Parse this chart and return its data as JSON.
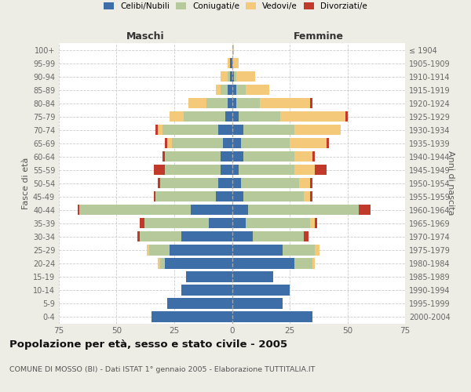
{
  "age_groups": [
    "0-4",
    "5-9",
    "10-14",
    "15-19",
    "20-24",
    "25-29",
    "30-34",
    "35-39",
    "40-44",
    "45-49",
    "50-54",
    "55-59",
    "60-64",
    "65-69",
    "70-74",
    "75-79",
    "80-84",
    "85-89",
    "90-94",
    "95-99",
    "100+"
  ],
  "birth_years": [
    "2000-2004",
    "1995-1999",
    "1990-1994",
    "1985-1989",
    "1980-1984",
    "1975-1979",
    "1970-1974",
    "1965-1969",
    "1960-1964",
    "1955-1959",
    "1950-1954",
    "1945-1949",
    "1940-1944",
    "1935-1939",
    "1930-1934",
    "1925-1929",
    "1920-1924",
    "1915-1919",
    "1910-1914",
    "1905-1909",
    "≤ 1904"
  ],
  "colors": {
    "celibi": "#3d6ea8",
    "coniugati": "#b5c99a",
    "vedovi": "#f5c97a",
    "divorziati": "#c0392b"
  },
  "maschi": {
    "celibi": [
      35,
      28,
      22,
      20,
      29,
      27,
      22,
      10,
      18,
      7,
      6,
      5,
      5,
      4,
      6,
      3,
      2,
      2,
      1,
      1,
      0
    ],
    "coniugati": [
      0,
      0,
      0,
      0,
      2,
      9,
      18,
      28,
      48,
      26,
      25,
      24,
      24,
      22,
      24,
      18,
      9,
      3,
      1,
      0,
      0
    ],
    "vedovi": [
      0,
      0,
      0,
      0,
      1,
      1,
      0,
      0,
      0,
      0,
      0,
      0,
      0,
      2,
      2,
      6,
      8,
      2,
      3,
      1,
      0
    ],
    "divorziati": [
      0,
      0,
      0,
      0,
      0,
      0,
      1,
      2,
      1,
      1,
      1,
      5,
      1,
      1,
      1,
      0,
      0,
      0,
      0,
      0,
      0
    ]
  },
  "femmine": {
    "celibi": [
      35,
      22,
      25,
      18,
      27,
      22,
      9,
      6,
      7,
      5,
      4,
      3,
      5,
      4,
      5,
      3,
      2,
      2,
      1,
      0,
      0
    ],
    "coniugati": [
      0,
      0,
      0,
      0,
      8,
      14,
      22,
      28,
      48,
      26,
      25,
      24,
      22,
      21,
      22,
      18,
      10,
      4,
      1,
      0,
      0
    ],
    "vedovi": [
      0,
      0,
      0,
      0,
      1,
      2,
      0,
      2,
      0,
      3,
      5,
      9,
      8,
      16,
      20,
      28,
      22,
      10,
      8,
      3,
      1
    ],
    "divorziati": [
      0,
      0,
      0,
      0,
      0,
      0,
      2,
      1,
      5,
      1,
      1,
      5,
      1,
      1,
      0,
      1,
      1,
      0,
      0,
      0,
      0
    ]
  },
  "xlim": 75,
  "title": "Popolazione per età, sesso e stato civile - 2005",
  "subtitle": "COMUNE DI MOSSO (BI) - Dati ISTAT 1° gennaio 2005 - Elaborazione TUTTITALIA.IT",
  "ylabel_left": "Fasce di età",
  "ylabel_right": "Anni di nascita",
  "xlabel_maschi": "Maschi",
  "xlabel_femmine": "Femmine",
  "bg_color": "#eeede5",
  "plot_bg": "#ffffff",
  "grid_color": "#cccccc"
}
